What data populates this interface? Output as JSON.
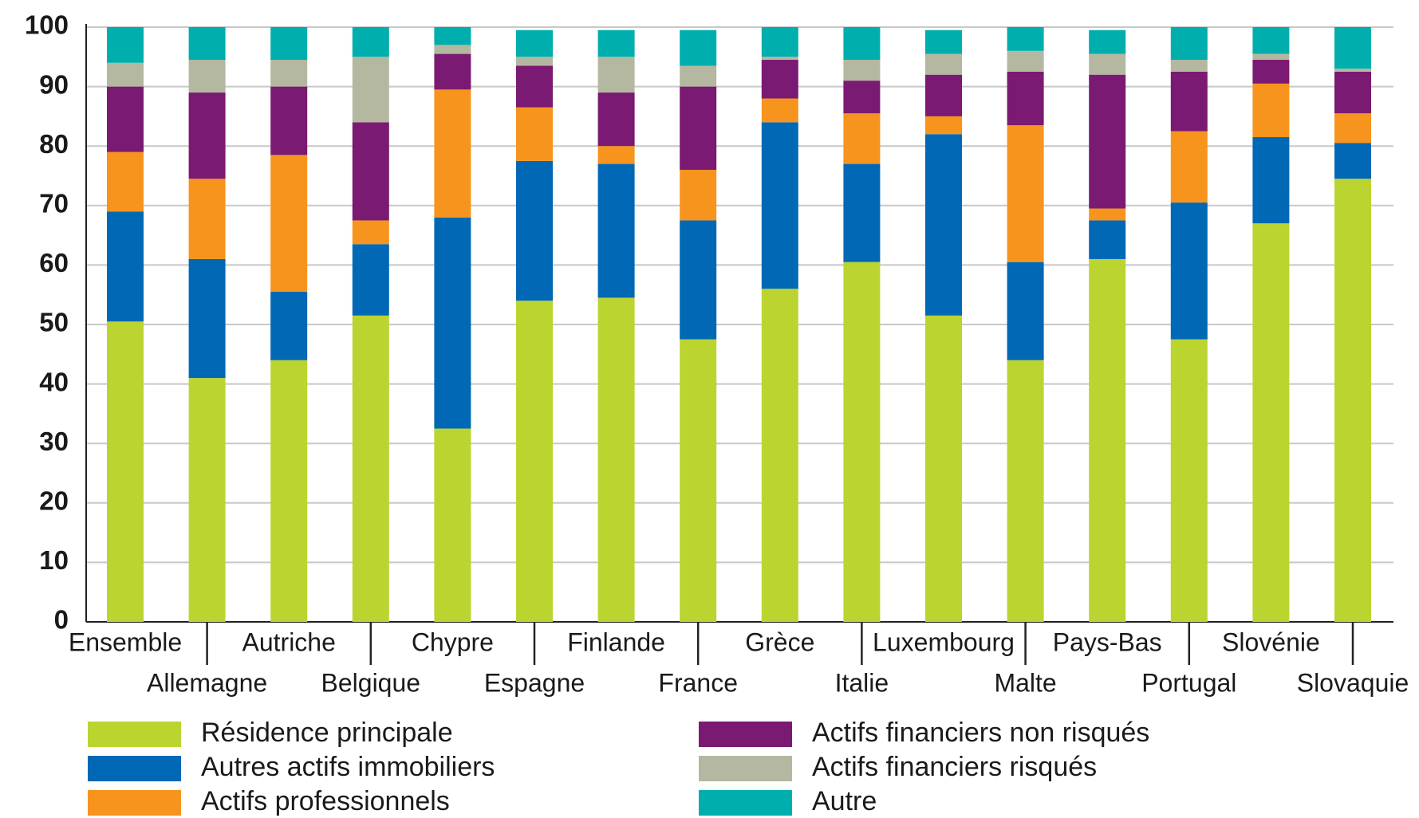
{
  "chart_data": {
    "type": "bar",
    "stacked": true,
    "categories": [
      "Ensemble",
      "Allemagne",
      "Autriche",
      "Belgique",
      "Chypre",
      "Espagne",
      "Finlande",
      "France",
      "Grèce",
      "Italie",
      "Luxembourg",
      "Malte",
      "Pays-Bas",
      "Portugal",
      "Slovénie",
      "Slovaquie"
    ],
    "series": [
      {
        "name": "Résidence principale",
        "color": "#bcd430",
        "values": [
          50.5,
          41,
          44,
          51.5,
          32.5,
          54,
          54.5,
          47.5,
          56,
          60.5,
          51.5,
          44,
          61,
          47.5,
          67,
          74.5
        ]
      },
      {
        "name": "Autres actifs immobiliers",
        "color": "#0068b5",
        "values": [
          18.5,
          20,
          11.5,
          12,
          35.5,
          23.5,
          22.5,
          20,
          28,
          16.5,
          30.5,
          16.5,
          6.5,
          23,
          14.5,
          6
        ]
      },
      {
        "name": "Actifs professionnels",
        "color": "#f7941d",
        "values": [
          10,
          13.5,
          23,
          4,
          21.5,
          9,
          3,
          8.5,
          4,
          8.5,
          3,
          23,
          2,
          12,
          9,
          5
        ]
      },
      {
        "name": "Actifs financiers non risqués",
        "color": "#7b1a72",
        "values": [
          11,
          14.5,
          11.5,
          16.5,
          6,
          7,
          9,
          14,
          6.5,
          5.5,
          7,
          9,
          22.5,
          10,
          4,
          7
        ]
      },
      {
        "name": "Actifs financiers risqués",
        "color": "#b5b8a0",
        "values": [
          4,
          5.5,
          4.5,
          11,
          1.5,
          1.5,
          6,
          3.5,
          0.5,
          3.5,
          3.5,
          3.5,
          3.5,
          2,
          1,
          0.5
        ]
      },
      {
        "name": "Autre",
        "color": "#00aeae",
        "values": [
          6,
          5.5,
          5.5,
          5,
          3,
          4.5,
          4.5,
          6,
          5,
          5.5,
          4,
          4,
          4,
          5.5,
          4.5,
          7
        ]
      }
    ],
    "ylim": [
      0,
      100
    ],
    "yticks": [
      0,
      10,
      20,
      30,
      40,
      50,
      60,
      70,
      80,
      90,
      100
    ],
    "grid": true
  }
}
